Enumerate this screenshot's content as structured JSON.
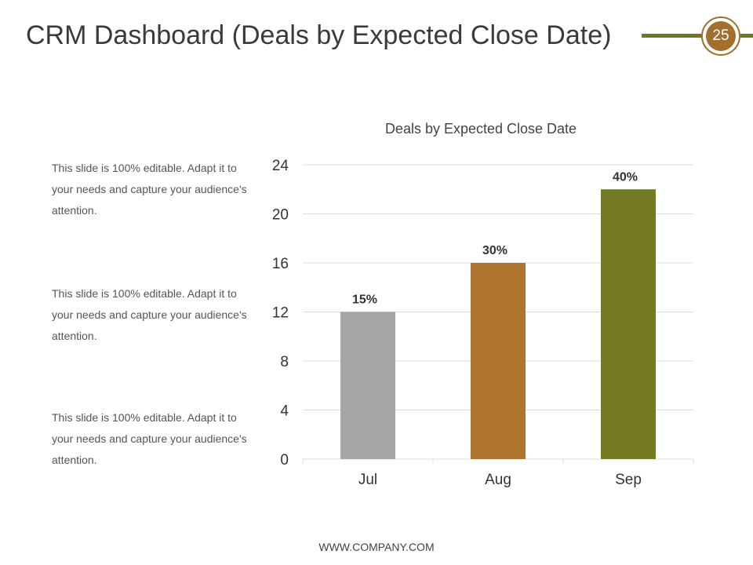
{
  "slide": {
    "title": "CRM Dashboard (Deals by Expected Close Date)",
    "page_number": "25",
    "footer": "WWW.COMPANY.COM"
  },
  "notes": [
    "This slide is 100% editable. Adapt it to your needs and capture your audience's attention.",
    "This slide is 100% editable. Adapt it to your needs and capture your audience's attention.",
    "This slide is 100% editable. Adapt it to your needs and capture your audience's attention."
  ],
  "colors": {
    "accent_green": "#6e7a23",
    "accent_brown": "#a36f2c"
  },
  "chart_data": {
    "type": "bar",
    "title": "Deals by Expected Close Date",
    "categories": [
      "Jul",
      "Aug",
      "Sep"
    ],
    "values": [
      12,
      16,
      22
    ],
    "data_labels": [
      "15%",
      "30%",
      "40%"
    ],
    "bar_colors": [
      "#a6a6a6",
      "#ae7430",
      "#737a22"
    ],
    "ylim": [
      0,
      24
    ],
    "yticks": [
      0,
      4,
      8,
      12,
      16,
      20,
      24
    ],
    "xlabel": "",
    "ylabel": "",
    "grid": true
  }
}
